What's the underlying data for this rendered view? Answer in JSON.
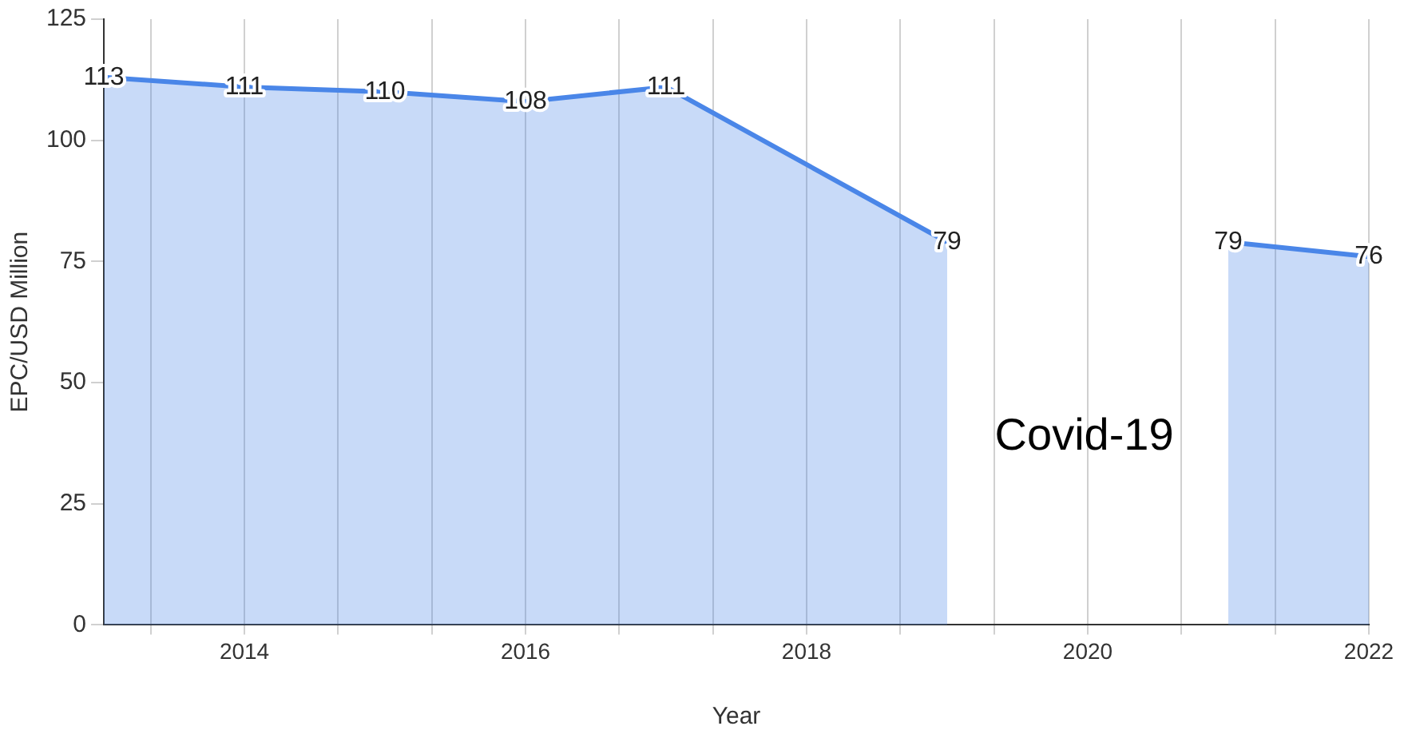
{
  "chart_data": {
    "type": "area",
    "xlabel": "Year",
    "ylabel": "EPC/USD Million",
    "x": [
      2013,
      2014,
      2015,
      2016,
      2017,
      2019,
      2020,
      2021,
      2022
    ],
    "series": [
      {
        "color": "#4a86e8",
        "values": [
          113,
          111,
          110,
          108,
          111,
          79,
          null,
          79,
          76
        ]
      }
    ],
    "xlim": [
      2013,
      2022
    ],
    "xticks": [
      {
        "value": 2013.333,
        "label": null
      },
      2014,
      {
        "value": 2014.667,
        "label": null
      },
      {
        "value": 2015.333,
        "label": null
      },
      2016,
      {
        "value": 2016.667,
        "label": null
      },
      {
        "value": 2017.333,
        "label": null
      },
      2018,
      {
        "value": 2018.667,
        "label": null
      },
      {
        "value": 2019.333,
        "label": null
      },
      2020,
      {
        "value": 2020.667,
        "label": null
      },
      {
        "value": 2021.333,
        "label": null
      },
      2022
    ],
    "ylim": [
      0,
      125
    ],
    "yticks": [
      0,
      25,
      50,
      75,
      100,
      125
    ],
    "grid": "x",
    "legend": false,
    "marker": "none",
    "data_labels": true,
    "annotations": [
      "Covid-19"
    ]
  }
}
